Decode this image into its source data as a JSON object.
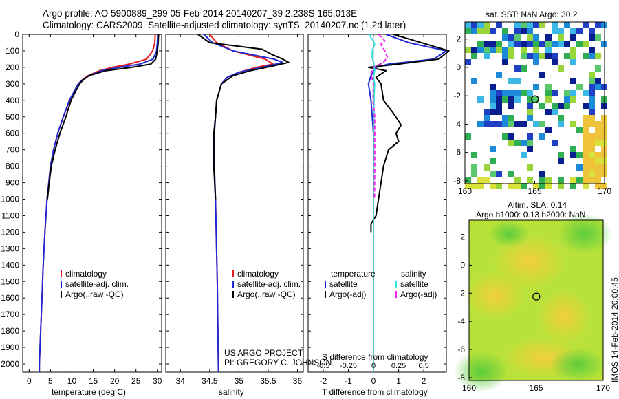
{
  "header": {
    "title_line1": "Argo profile: AO 5900889_299 05-Feb-2014 20140207_39 2.238S 165.013E",
    "title_line2": "Climatology: CARS2009. Satellite-adjusted climatology: synTS_20140207.nc (1.2d later)"
  },
  "side": {
    "vertical_stamp": "IMOS 14-Feb-2014 20:00:45",
    "credit_line1": "US ARGO PROJECT",
    "credit_line2": "PI: GREGORY C. JOHNSON"
  },
  "colors": {
    "climatology": "#e41a1c",
    "satellite": "#1f2bd6",
    "argo": "#000000",
    "sat_salinity": "#33e6e6",
    "argo_salinity": "#ee22ee"
  },
  "chart_data": [
    {
      "type": "line",
      "panel": "temperature",
      "xlabel": "temperature (deg C)",
      "ylabel": "",
      "xlim": [
        -1.5,
        31
      ],
      "ylim": [
        2050,
        0
      ],
      "xticks": [
        "0",
        "5",
        "10",
        "15",
        "20",
        "25",
        "30"
      ],
      "yticks": [
        "0",
        "100",
        "200",
        "300",
        "400",
        "500",
        "600",
        "700",
        "800",
        "900",
        "1000",
        "1100",
        "1200",
        "1300",
        "1400",
        "1500",
        "1600",
        "1700",
        "1800",
        "1900",
        "2000"
      ],
      "legend": [
        "climatology",
        "satellite-adj. clim.",
        "Argo(..raw -QC)"
      ],
      "series": [
        {
          "name": "climatology",
          "depth": [
            0,
            50,
            100,
            150,
            180,
            200,
            220,
            250,
            280,
            300,
            400,
            500,
            600,
            700,
            800,
            900,
            1000,
            1200,
            1400,
            1600,
            1800,
            2000,
            2050
          ],
          "values": [
            29.5,
            29.4,
            28.9,
            27.5,
            23.5,
            19.5,
            16.5,
            13.8,
            12.2,
            11.5,
            9.5,
            8.0,
            6.7,
            5.7,
            5.0,
            4.6,
            4.2,
            3.7,
            3.3,
            3.0,
            2.7,
            2.4,
            2.4
          ]
        },
        {
          "name": "satellite-adj. clim.",
          "depth": [
            0,
            50,
            100,
            150,
            180,
            200,
            220,
            250,
            280,
            300,
            400,
            500,
            600,
            700,
            800,
            900,
            1000,
            1200,
            1400,
            1600,
            1800,
            2000,
            2050
          ],
          "values": [
            30.1,
            30.0,
            29.8,
            29.0,
            26.0,
            21.0,
            17.0,
            14.0,
            12.3,
            11.5,
            9.4,
            8.0,
            6.7,
            5.7,
            5.0,
            4.6,
            4.2,
            3.7,
            3.3,
            3.0,
            2.7,
            2.4,
            2.4
          ]
        },
        {
          "name": "Argo(..raw -QC)",
          "depth": [
            0,
            50,
            100,
            150,
            180,
            200,
            220,
            250,
            280,
            300,
            400,
            500,
            600,
            700,
            800,
            900,
            1000
          ],
          "values": [
            30.3,
            30.2,
            30.0,
            29.6,
            28.5,
            24.0,
            18.0,
            14.0,
            12.5,
            11.8,
            9.8,
            8.6,
            7.2,
            6.1,
            5.2,
            4.7,
            4.3
          ]
        }
      ]
    },
    {
      "type": "line",
      "panel": "salinity",
      "xlabel": "salinity",
      "ylabel": "",
      "xlim": [
        33.75,
        36.1
      ],
      "ylim": [
        2050,
        0
      ],
      "xticks": [
        "34",
        "34.5",
        "35",
        "35.5",
        "36"
      ],
      "legend": [
        "climatology",
        "satellite-adj. clim.",
        "Argo(..raw -QC)"
      ],
      "series": [
        {
          "name": "climatology",
          "depth": [
            0,
            50,
            100,
            150,
            180,
            200,
            230,
            260,
            300,
            400,
            500,
            600,
            800,
            1000,
            1500,
            2050
          ],
          "values": [
            34.5,
            34.62,
            34.9,
            35.45,
            35.58,
            35.3,
            35.0,
            34.8,
            34.7,
            34.62,
            34.6,
            34.58,
            34.58,
            34.6,
            34.63,
            34.65
          ]
        },
        {
          "name": "satellite-adj. clim.",
          "depth": [
            0,
            50,
            100,
            150,
            170,
            200,
            230,
            260,
            300,
            400,
            500,
            600,
            800,
            1000,
            1500,
            2050
          ],
          "values": [
            34.4,
            34.55,
            34.9,
            35.6,
            35.75,
            35.4,
            35.0,
            34.8,
            34.7,
            34.62,
            34.6,
            34.58,
            34.58,
            34.6,
            34.63,
            34.65
          ]
        },
        {
          "name": "Argo(..raw -QC)",
          "depth": [
            0,
            50,
            90,
            120,
            150,
            170,
            190,
            220,
            250,
            300,
            400,
            500,
            600,
            800,
            1000
          ],
          "values": [
            34.3,
            34.5,
            35.4,
            35.55,
            35.75,
            35.85,
            35.6,
            35.2,
            34.9,
            34.7,
            34.62,
            34.6,
            34.57,
            34.57,
            34.6
          ]
        }
      ]
    },
    {
      "type": "line",
      "panel": "difference",
      "xlabel": "T difference from climatology",
      "secondary_xlabel": "S difference from climatology",
      "xlim": [
        -2.6,
        2.9
      ],
      "ylim": [
        2050,
        0
      ],
      "xticks": [
        "-2",
        "-1",
        "0",
        "1",
        "2"
      ],
      "secondary_xticks": [
        "-0.5",
        "-0.25",
        "0",
        "0.25",
        "0.5"
      ],
      "legend_left_title": "temperature",
      "legend_right_title": "salinity",
      "legend": [
        "satellite",
        "Argo(-adj)",
        "satellite",
        "Argo(-adj)"
      ],
      "series": [
        {
          "name": "T satellite",
          "depth": [
            0,
            50,
            100,
            150,
            180,
            200,
            250,
            300,
            400,
            600,
            1000,
            1500,
            2050
          ],
          "values": [
            0.5,
            1.4,
            2.9,
            2.4,
            0.6,
            0.1,
            -0.1,
            -0.2,
            -0.1,
            0,
            0,
            0,
            0
          ]
        },
        {
          "name": "T Argo(-adj)",
          "depth": [
            0,
            50,
            100,
            150,
            180,
            200,
            220,
            260,
            300,
            400,
            480,
            550,
            600,
            650,
            700,
            800,
            900,
            1000,
            1100,
            1150,
            1200
          ],
          "values": [
            0.8,
            1.9,
            3.0,
            2.6,
            1.0,
            -0.2,
            0.5,
            0.1,
            0.3,
            0.4,
            0.8,
            1.1,
            0.9,
            1.0,
            0.6,
            0.4,
            0.3,
            0.2,
            0.1,
            -0.1,
            -0.1
          ]
        },
        {
          "name": "S satellite",
          "depth": [
            0,
            20,
            40,
            60,
            100,
            140,
            180,
            220,
            260,
            300,
            400,
            600,
            1000,
            2050
          ],
          "values": [
            -0.15,
            -0.1,
            0.0,
            0.05,
            -0.05,
            -0.05,
            0.02,
            0.05,
            0.0,
            0.05,
            0.02,
            0.01,
            0,
            0
          ]
        },
        {
          "name": "S Argo(-adj)",
          "depth": [
            0,
            20,
            40,
            60,
            100,
            140,
            170,
            200,
            240,
            270,
            300,
            400,
            500,
            600,
            800,
            1000
          ],
          "values": [
            0.2,
            0.35,
            0.45,
            0.3,
            0.45,
            0.55,
            0.4,
            0.0,
            -0.1,
            -0.05,
            0.0,
            -0.02,
            0.05,
            0.05,
            0.05,
            0.04
          ]
        }
      ]
    },
    {
      "type": "heatmap",
      "panel": "sst_map",
      "title": "sat. SST: NaN Argo: 30.2",
      "xlim": [
        160,
        170
      ],
      "ylim": [
        -8.2,
        3.2
      ],
      "xticks": [
        "160",
        "165",
        "170"
      ],
      "yticks": [
        "2",
        "0",
        "-2",
        "-4",
        "-6",
        "-8"
      ],
      "argo_position": {
        "lon": 165.013,
        "lat": -2.238
      }
    },
    {
      "type": "heatmap",
      "panel": "sla_map",
      "title_line1": "Altim. SLA: 0.14",
      "title_line2": "Argo h1000: 0.13 h2000: NaN",
      "xlim": [
        160,
        170
      ],
      "ylim": [
        -8.2,
        3.2
      ],
      "xticks": [
        "160",
        "165",
        "170"
      ],
      "yticks": [
        "2",
        "0",
        "-2",
        "-4",
        "-6",
        "-8"
      ],
      "argo_position": {
        "lon": 165.013,
        "lat": -2.238
      }
    }
  ]
}
